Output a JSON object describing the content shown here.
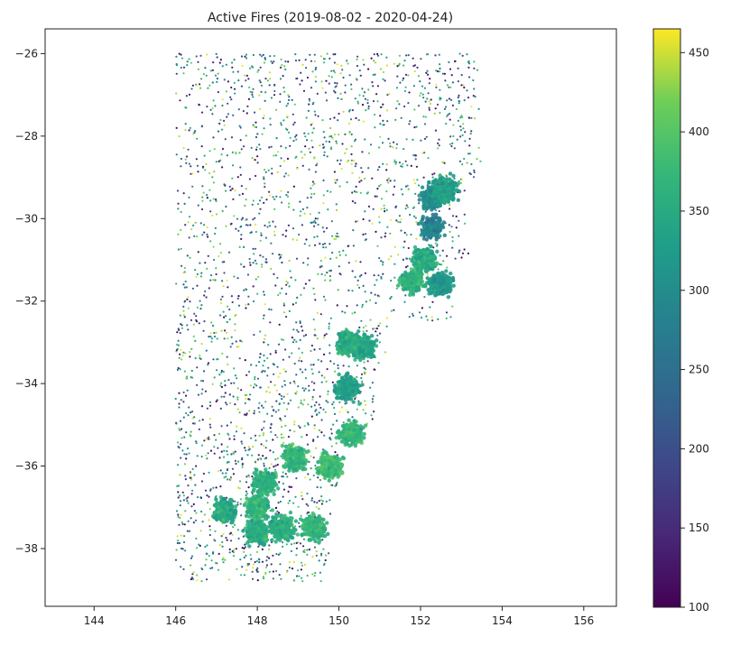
{
  "chart_data": {
    "type": "scatter",
    "title": "Active Fires (2019-08-02 - 2020-04-24)",
    "xlabel": "",
    "ylabel": "",
    "xlim": [
      142.8,
      156.8
    ],
    "ylim": [
      -39.4,
      -25.4
    ],
    "xticks": [
      144,
      146,
      148,
      150,
      152,
      154,
      156
    ],
    "yticks": [
      -26,
      -28,
      -30,
      -32,
      -34,
      -36,
      -38
    ],
    "xtick_labels": [
      "144",
      "146",
      "148",
      "150",
      "152",
      "154",
      "156"
    ],
    "ytick_labels": [
      "−26",
      "−28",
      "−30",
      "−32",
      "−34",
      "−36",
      "−38"
    ],
    "grid": false,
    "colormap": "viridis",
    "colorbar": {
      "range": [
        100,
        465
      ],
      "ticks": [
        100,
        150,
        200,
        250,
        300,
        350,
        400,
        450
      ],
      "tick_labels": [
        "100",
        "150",
        "200",
        "250",
        "300",
        "350",
        "400",
        "450"
      ]
    },
    "data_extent": {
      "lon": [
        146.0,
        153.6
      ],
      "lat": [
        -38.8,
        -26.0
      ]
    },
    "clusters": [
      {
        "lon": 152.3,
        "lat": -29.5,
        "value": 300
      },
      {
        "lon": 152.6,
        "lat": -29.3,
        "value": 330
      },
      {
        "lon": 152.3,
        "lat": -30.2,
        "value": 280
      },
      {
        "lon": 152.1,
        "lat": -31.0,
        "value": 350
      },
      {
        "lon": 151.8,
        "lat": -31.5,
        "value": 360
      },
      {
        "lon": 152.5,
        "lat": -31.6,
        "value": 320
      },
      {
        "lon": 150.6,
        "lat": -33.1,
        "value": 340
      },
      {
        "lon": 150.2,
        "lat": -33.0,
        "value": 350
      },
      {
        "lon": 150.2,
        "lat": -34.1,
        "value": 330
      },
      {
        "lon": 150.3,
        "lat": -35.2,
        "value": 370
      },
      {
        "lon": 149.8,
        "lat": -36.0,
        "value": 380
      },
      {
        "lon": 148.9,
        "lat": -35.8,
        "value": 370
      },
      {
        "lon": 148.2,
        "lat": -36.4,
        "value": 360
      },
      {
        "lon": 148.0,
        "lat": -37.0,
        "value": 370
      },
      {
        "lon": 147.2,
        "lat": -37.1,
        "value": 350
      },
      {
        "lon": 148.6,
        "lat": -37.5,
        "value": 360
      },
      {
        "lon": 149.4,
        "lat": -37.5,
        "value": 370
      },
      {
        "lon": 148.0,
        "lat": -37.6,
        "value": 350
      }
    ]
  }
}
